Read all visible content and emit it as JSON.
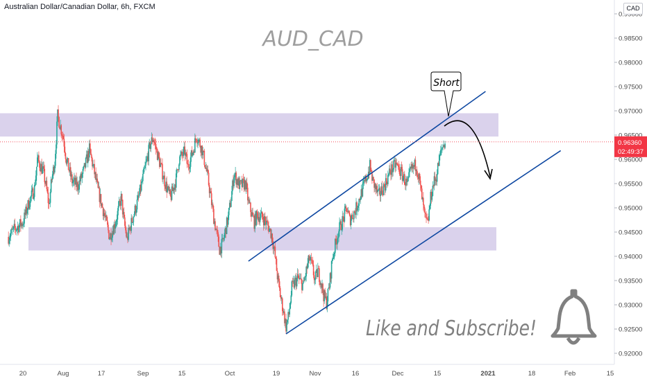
{
  "header": {
    "symbol_title": "Australian Dollar/Canadian Dollar, 6h, FXCM"
  },
  "watermark": "AUD_CAD",
  "annotations": {
    "short_label": "Short",
    "cta_text": "Like and Subscribe!"
  },
  "price_axis": {
    "unit_label": "CAD",
    "current_price": "0.96360",
    "countdown": "02:49:37",
    "badge_color": "#f23645"
  },
  "colors": {
    "bull": "#26a69a",
    "bear": "#ef5350",
    "zone": "#d6cdea",
    "trendline": "#0d47a1",
    "annotation_text": "#808080"
  },
  "chart_data": {
    "type": "candlestick",
    "title": "Australian Dollar/Canadian Dollar, 6h, FXCM",
    "ylim": [
      0.92,
      0.99
    ],
    "y_ticks": [
      "0.92000",
      "0.92500",
      "0.93000",
      "0.93500",
      "0.94000",
      "0.94500",
      "0.95000",
      "0.95500",
      "0.96000",
      "0.96500",
      "0.97000",
      "0.97500",
      "0.98000",
      "0.98500",
      "0.99000"
    ],
    "x_ticks": [
      "20",
      "Aug",
      "17",
      "Sep",
      "15",
      "Oct",
      "19",
      "Nov",
      "16",
      "Dec",
      "15",
      "2021",
      "18",
      "Feb",
      "15"
    ],
    "close_path": [
      [
        "Jul 15",
        0.944
      ],
      [
        "Jul 17",
        0.9455
      ],
      [
        "Jul 20",
        0.947
      ],
      [
        "Jul 22",
        0.951
      ],
      [
        "Jul 24",
        0.954
      ],
      [
        "Jul 25",
        0.96
      ],
      [
        "Jul 27",
        0.9575
      ],
      [
        "Jul 28",
        0.9545
      ],
      [
        "Jul 29",
        0.9505
      ],
      [
        "Jul 30",
        0.956
      ],
      [
        "Jul 31",
        0.9595
      ],
      [
        "Aug 01",
        0.969
      ],
      [
        "Aug 03",
        0.9645
      ],
      [
        "Aug 04",
        0.96
      ],
      [
        "Aug 06",
        0.9555
      ],
      [
        "Aug 08",
        0.9545
      ],
      [
        "Aug 10",
        0.9575
      ],
      [
        "Aug 12",
        0.962
      ],
      [
        "Aug 14",
        0.9565
      ],
      [
        "Aug 15",
        0.9535
      ],
      [
        "Aug 17",
        0.949
      ],
      [
        "Aug 19",
        0.944
      ],
      [
        "Aug 21",
        0.947
      ],
      [
        "Aug 23",
        0.952
      ],
      [
        "Aug 24",
        0.947
      ],
      [
        "Aug 25",
        0.9435
      ],
      [
        "Aug 27",
        0.948
      ],
      [
        "Aug 29",
        0.952
      ],
      [
        "Aug 31",
        0.9575
      ],
      [
        "Sep 02",
        0.963
      ],
      [
        "Sep 03",
        0.9645
      ],
      [
        "Sep 05",
        0.96
      ],
      [
        "Sep 07",
        0.9555
      ],
      [
        "Sep 09",
        0.952
      ],
      [
        "Sep 11",
        0.956
      ],
      [
        "Sep 12",
        0.96
      ],
      [
        "Sep 14",
        0.9615
      ],
      [
        "Sep 15",
        0.9585
      ],
      [
        "Sep 17",
        0.962
      ],
      [
        "Sep 18",
        0.965
      ],
      [
        "Sep 20",
        0.962
      ],
      [
        "Sep 22",
        0.956
      ],
      [
        "Sep 24",
        0.948
      ],
      [
        "Sep 26",
        0.9415
      ],
      [
        "Sep 27",
        0.9425
      ],
      [
        "Sep 29",
        0.948
      ],
      [
        "Sep 30",
        0.952
      ],
      [
        "Oct 01",
        0.957
      ],
      [
        "Oct 03",
        0.9545
      ],
      [
        "Oct 05",
        0.955
      ],
      [
        "Oct 06",
        0.951
      ],
      [
        "Oct 08",
        0.947
      ],
      [
        "Oct 09",
        0.9485
      ],
      [
        "Oct 11",
        0.948
      ],
      [
        "Oct 13",
        0.946
      ],
      [
        "Oct 14",
        0.9445
      ],
      [
        "Oct 15",
        0.941
      ],
      [
        "Oct 16",
        0.936
      ],
      [
        "Oct 17",
        0.932
      ],
      [
        "Oct 18",
        0.929
      ],
      [
        "Oct 19",
        0.9255
      ],
      [
        "Oct 20",
        0.928
      ],
      [
        "Oct 21",
        0.9335
      ],
      [
        "Oct 23",
        0.9355
      ],
      [
        "Oct 25",
        0.934
      ],
      [
        "Oct 26",
        0.937
      ],
      [
        "Oct 27",
        0.9395
      ],
      [
        "Oct 28",
        0.938
      ],
      [
        "Oct 29",
        0.935
      ],
      [
        "Oct 30",
        0.937
      ],
      [
        "Oct 31",
        0.935
      ],
      [
        "Nov 01",
        0.932
      ],
      [
        "Nov 02",
        0.9305
      ],
      [
        "Nov 03",
        0.934
      ],
      [
        "Nov 04",
        0.9395
      ],
      [
        "Nov 06",
        0.945
      ],
      [
        "Nov 08",
        0.948
      ],
      [
        "Nov 09",
        0.95
      ],
      [
        "Nov 10",
        0.9475
      ],
      [
        "Nov 12",
        0.9495
      ],
      [
        "Nov 14",
        0.953
      ],
      [
        "Nov 16",
        0.9565
      ],
      [
        "Nov 17",
        0.9585
      ],
      [
        "Nov 18",
        0.9555
      ],
      [
        "Nov 20",
        0.9525
      ],
      [
        "Nov 22",
        0.9545
      ],
      [
        "Nov 24",
        0.9575
      ],
      [
        "Nov 26",
        0.959
      ],
      [
        "Nov 28",
        0.957
      ],
      [
        "Nov 30",
        0.9545
      ],
      [
        "Dec 01",
        0.9575
      ],
      [
        "Dec 03",
        0.959
      ],
      [
        "Dec 04",
        0.956
      ],
      [
        "Dec 05",
        0.952
      ],
      [
        "Dec 06",
        0.948
      ],
      [
        "Dec 07",
        0.9465
      ],
      [
        "Dec 08",
        0.952
      ],
      [
        "Dec 09",
        0.955
      ],
      [
        "Dec 10",
        0.9565
      ],
      [
        "Dec 11",
        0.96
      ],
      [
        "Dec 12",
        0.9625
      ],
      [
        "Dec 13",
        0.9636
      ]
    ],
    "zones": [
      {
        "name": "resistance",
        "from": 0.9647,
        "to": 0.9695
      },
      {
        "name": "support",
        "from": 0.9412,
        "to": 0.946
      }
    ],
    "channel": {
      "upper": [
        [
          "Oct 06",
          0.939
        ],
        [
          "Dec 27",
          0.974
        ]
      ],
      "lower": [
        [
          "Oct 19",
          0.924
        ],
        [
          "Jan 22",
          0.9618
        ]
      ]
    },
    "last_price": 0.9636
  }
}
